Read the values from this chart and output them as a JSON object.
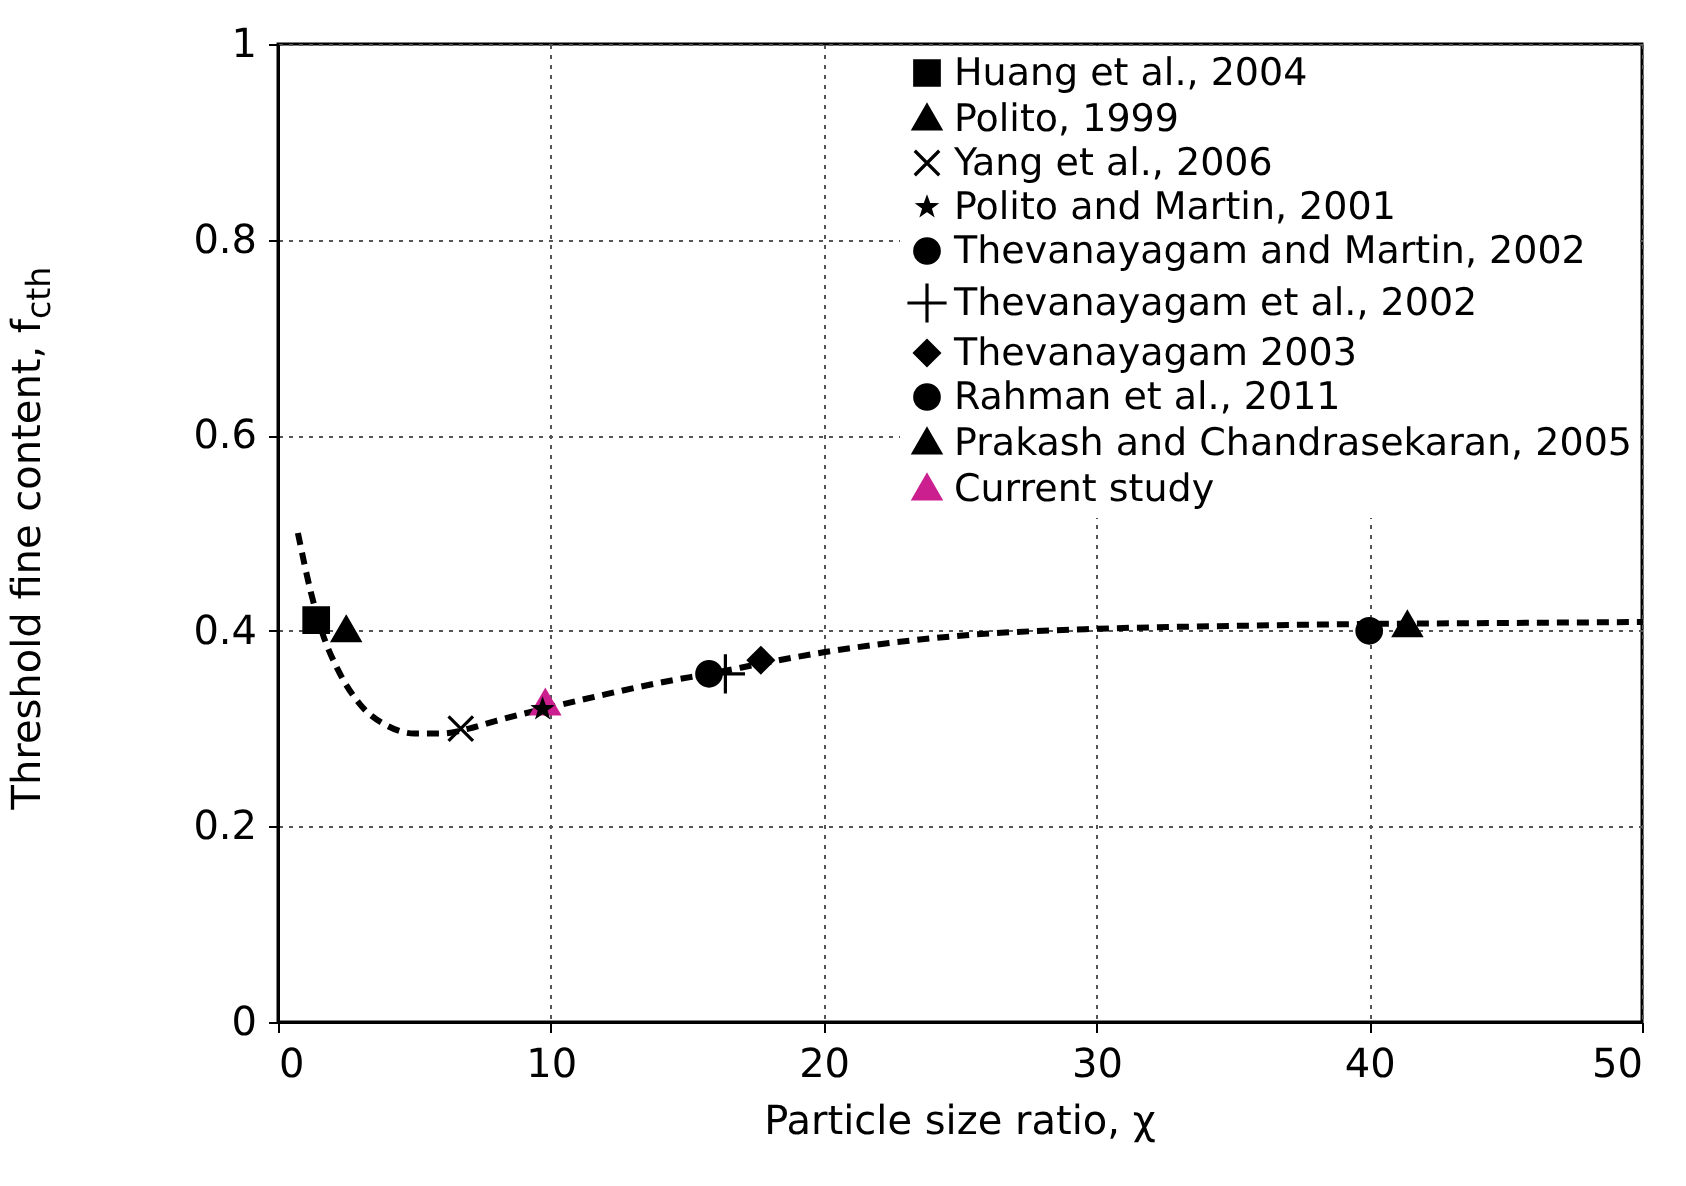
{
  "chart_data": {
    "type": "scatter",
    "xlabel": "Particle size ratio, χ",
    "ylabel": "Threshold fine content, f$_{cth}$",
    "xlim": [
      0,
      50
    ],
    "xticks": [
      0,
      10,
      20,
      30,
      40,
      50
    ],
    "ylim": [
      0,
      1
    ],
    "yticks": [
      0,
      0.2,
      0.4,
      0.6,
      0.8,
      1
    ],
    "grid": true,
    "legend": "top right",
    "series": [
      {
        "type": "line",
        "color": "#000000",
        "line_style": "dashed",
        "marker": "none",
        "x": [
          0.73,
          1.2,
          1.6,
          2.2,
          3,
          4,
          5,
          6,
          7,
          8,
          10,
          12,
          14,
          16,
          18,
          20,
          25,
          30,
          35,
          40,
          45,
          50
        ],
        "values": [
          0.5,
          0.44,
          0.4,
          0.36,
          0.325,
          0.303,
          0.295,
          0.295,
          0.3,
          0.308,
          0.322,
          0.335,
          0.347,
          0.357,
          0.368,
          0.378,
          0.395,
          0.402,
          0.405,
          0.407,
          0.408,
          0.409
        ]
      },
      {
        "name": "Huang et al., 2004",
        "color": "#000000",
        "marker": "square",
        "x": [
          1.4
        ],
        "values": [
          0.411
        ]
      },
      {
        "name": "Polito, 1999",
        "color": "#000000",
        "marker": "triangle",
        "x": [
          2.5
        ],
        "values": [
          0.4
        ]
      },
      {
        "name": "Yang et al., 2006",
        "color": "#000000",
        "marker": "cross",
        "x": [
          6.7
        ],
        "values": [
          0.3
        ]
      },
      {
        "name": "Polito and Martin, 2001",
        "color": "#000000",
        "marker": "star",
        "x": [
          9.7
        ],
        "values": [
          0.32
        ]
      },
      {
        "name": "Thevanayagam and Martin, 2002",
        "color": "#000000",
        "marker": "circle",
        "x": [
          15.8
        ],
        "values": [
          0.356
        ]
      },
      {
        "name": "Thevanayagam et al., 2002",
        "color": "#000000",
        "marker": "plus",
        "x": [
          16.4
        ],
        "values": [
          0.356
        ]
      },
      {
        "name": "Thevanayagam 2003",
        "color": "#000000",
        "marker": "diamond",
        "x": [
          17.7
        ],
        "values": [
          0.37
        ]
      },
      {
        "name": "Rahman et al., 2011",
        "color": "#000000",
        "marker": "circle",
        "x": [
          40.0
        ],
        "values": [
          0.4
        ]
      },
      {
        "name": "Prakash and Chandrasekaran, 2005",
        "color": "#000000",
        "marker": "triangle",
        "x": [
          41.4
        ],
        "values": [
          0.405
        ]
      },
      {
        "name": "Current study",
        "color": "#cc1f8f",
        "marker": "triangle",
        "x": [
          9.8
        ],
        "values": [
          0.325
        ]
      }
    ]
  }
}
